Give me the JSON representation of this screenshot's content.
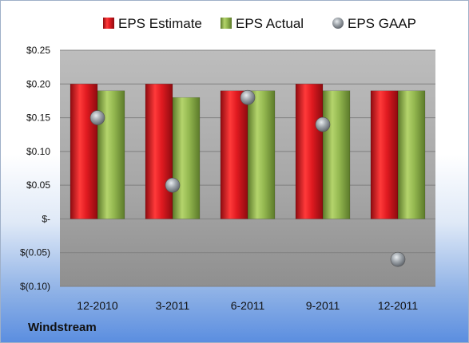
{
  "chart_data": {
    "type": "bar",
    "categories": [
      "12-2010",
      "3-2011",
      "6-2011",
      "9-2011",
      "12-2011"
    ],
    "series": [
      {
        "name": "EPS Estimate",
        "kind": "bar",
        "color": "#d9141c",
        "values": [
          0.2,
          0.2,
          0.19,
          0.2,
          0.19
        ]
      },
      {
        "name": "EPS Actual",
        "kind": "bar",
        "color": "#8fb44a",
        "values": [
          0.19,
          0.18,
          0.19,
          0.19,
          0.19
        ]
      },
      {
        "name": "EPS GAAP",
        "kind": "scatter",
        "color": "#9aa0a6",
        "values": [
          0.15,
          0.05,
          0.18,
          0.14,
          -0.06
        ]
      }
    ],
    "ylim": [
      -0.1,
      0.25
    ],
    "yticks": [
      0.25,
      0.2,
      0.15,
      0.1,
      0.05,
      0,
      -0.05,
      -0.1
    ],
    "ytick_labels": [
      "$0.25",
      "$0.20",
      "$0.15",
      "$0.10",
      "$0.05",
      "$-",
      "$(0.05)",
      "$(0.10)"
    ],
    "grid": true,
    "legend_position": "top"
  },
  "company": "Windstream"
}
